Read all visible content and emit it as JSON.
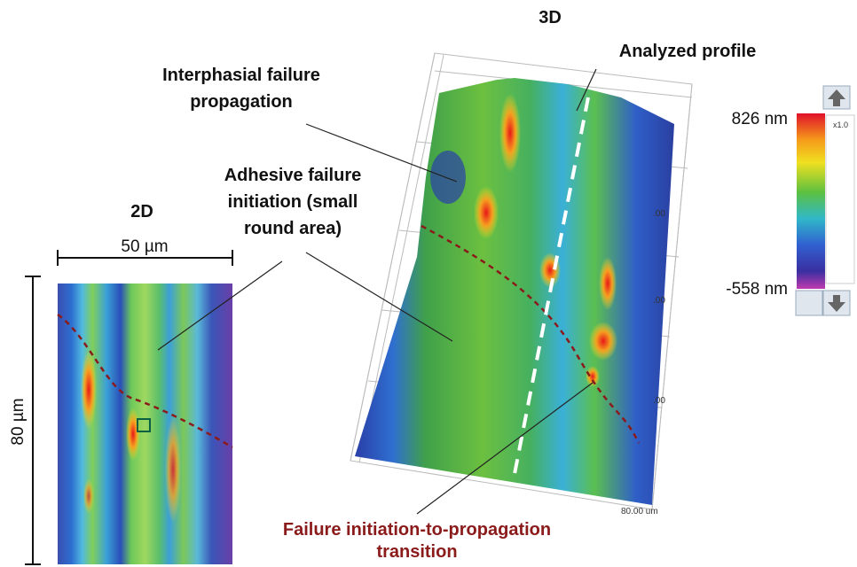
{
  "view_3d": {
    "title": "3D",
    "profile_label": "Analyzed profile",
    "axis_labels": [
      ".00",
      ".00",
      ".00",
      "80.00 um"
    ]
  },
  "view_2d": {
    "title": "2D",
    "width_label": "50 µm",
    "height_label": "80 µm"
  },
  "color_scale": {
    "max_label": "826 nm",
    "min_label": "-558 nm",
    "zoom_label": "x1.0"
  },
  "annotations": {
    "interphasial": [
      "Interphasial failure",
      "propagation"
    ],
    "adhesive": [
      "Adhesive failure",
      "initiation (small",
      "round area)"
    ],
    "transition": [
      "Failure initiation-to-propagation",
      "transition"
    ]
  }
}
